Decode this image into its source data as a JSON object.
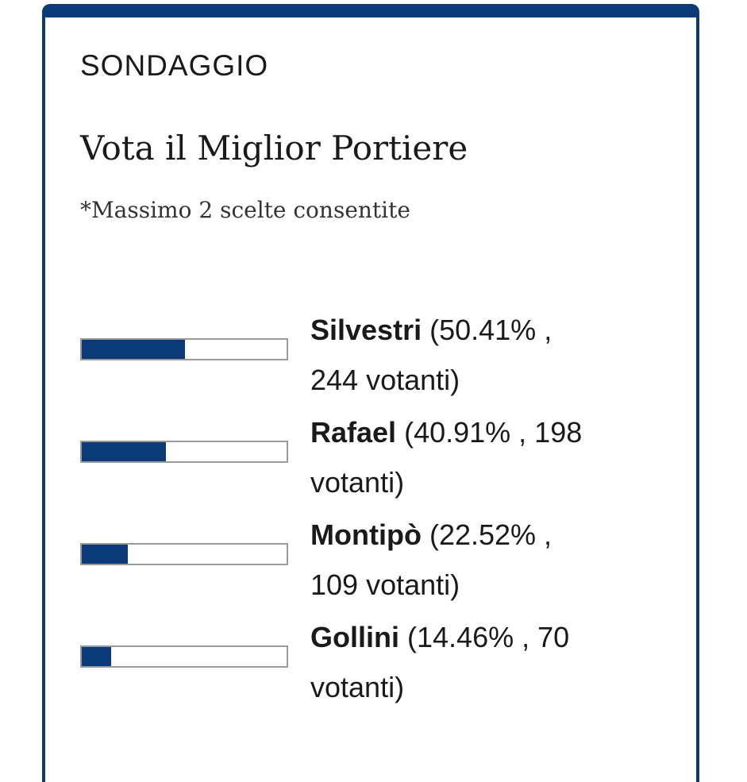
{
  "poll": {
    "kicker": "SONDAGGIO",
    "title": "Vota il Miglior Portiere",
    "subtitle": "*Massimo 2 scelte consentite",
    "accent_color": "#0b3a78",
    "options": [
      {
        "name": "Silvestri",
        "stats": "(50.41% , 244 votanti)",
        "percent": 50.41,
        "votes": 244
      },
      {
        "name": "Rafael",
        "stats": "(40.91% , 198 votanti)",
        "percent": 40.91,
        "votes": 198
      },
      {
        "name": "Montipò",
        "stats": "(22.52% , 109 votanti)",
        "percent": 22.52,
        "votes": 109
      },
      {
        "name": "Gollini",
        "stats": "(14.46% , 70 votanti)",
        "percent": 14.46,
        "votes": 70
      }
    ]
  }
}
